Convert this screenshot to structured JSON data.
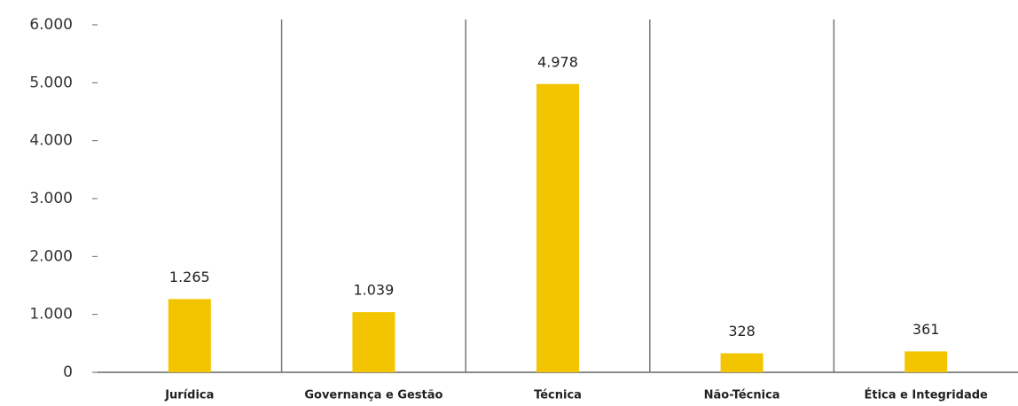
{
  "chart_data": {
    "type": "bar",
    "categories": [
      "Jurídica",
      "Governança e Gestão",
      "Técnica",
      "Não-Técnica",
      "Ética e Integridade"
    ],
    "values": [
      1265,
      1039,
      4978,
      328,
      361
    ],
    "value_labels": [
      "1.265",
      "1.039",
      "4.978",
      "328",
      "361"
    ],
    "color": "#f2c500",
    "ylim": [
      0,
      6000
    ],
    "yticks": [
      0,
      {
        "value": 1000,
        "label": "1.000"
      },
      {
        "value": 2000,
        "label": "2.000"
      },
      {
        "value": 3000,
        "label": "3.000"
      },
      {
        "value": 4000,
        "label": "4.000"
      },
      {
        "value": 5000,
        "label": "5.000"
      },
      {
        "value": 6000,
        "label": "6.000"
      }
    ],
    "grid": false
  }
}
